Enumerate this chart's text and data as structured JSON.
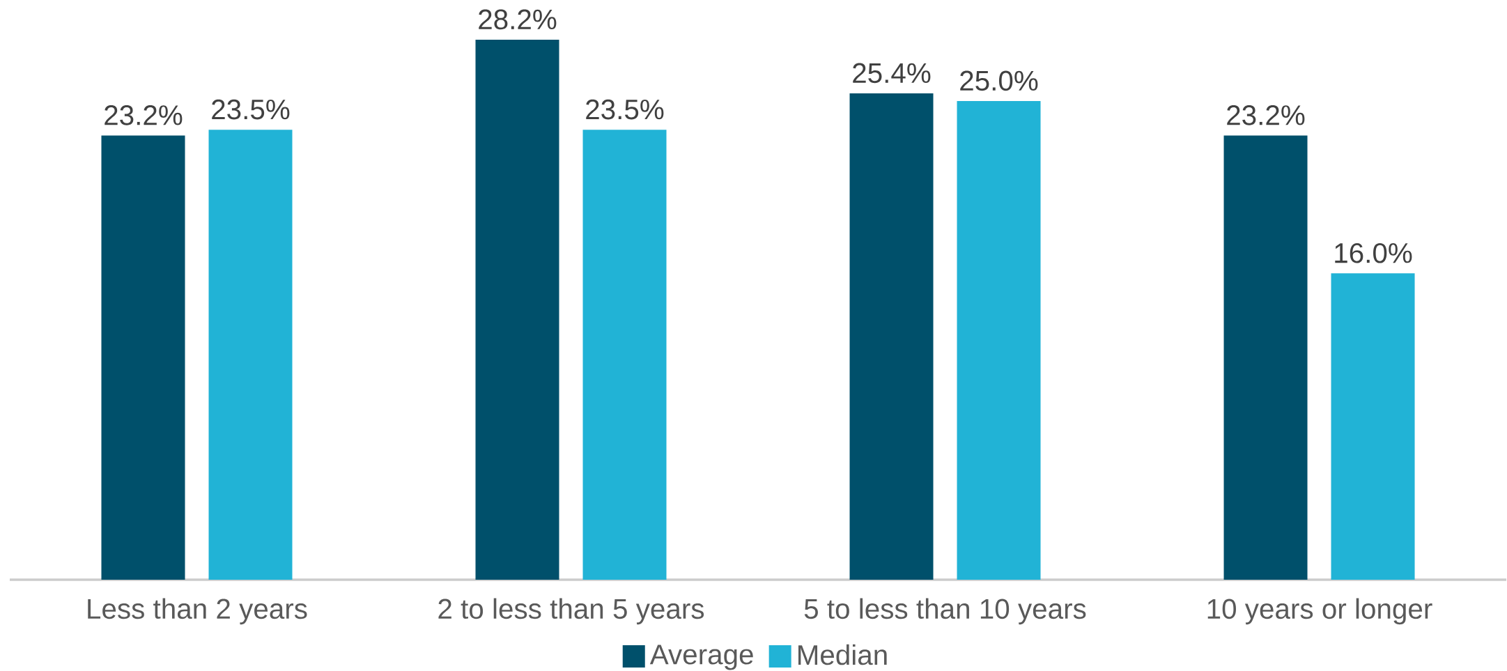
{
  "chart_data": {
    "type": "bar",
    "categories": [
      "Less than 2 years",
      "2 to less than 5 years",
      "5 to less than 10 years",
      "10 years or longer"
    ],
    "series": [
      {
        "name": "Average",
        "color": "#00506b",
        "values": [
          23.2,
          28.2,
          25.4,
          23.2
        ],
        "value_labels": [
          "23.2%",
          "28.2%",
          "25.4%",
          "23.2%"
        ]
      },
      {
        "name": "Median",
        "color": "#21b3d6",
        "values": [
          23.5,
          23.5,
          25.0,
          16.0
        ],
        "value_labels": [
          "23.5%",
          "23.5%",
          "25.0%",
          "16.0%"
        ]
      }
    ],
    "legend": "bottom"
  }
}
